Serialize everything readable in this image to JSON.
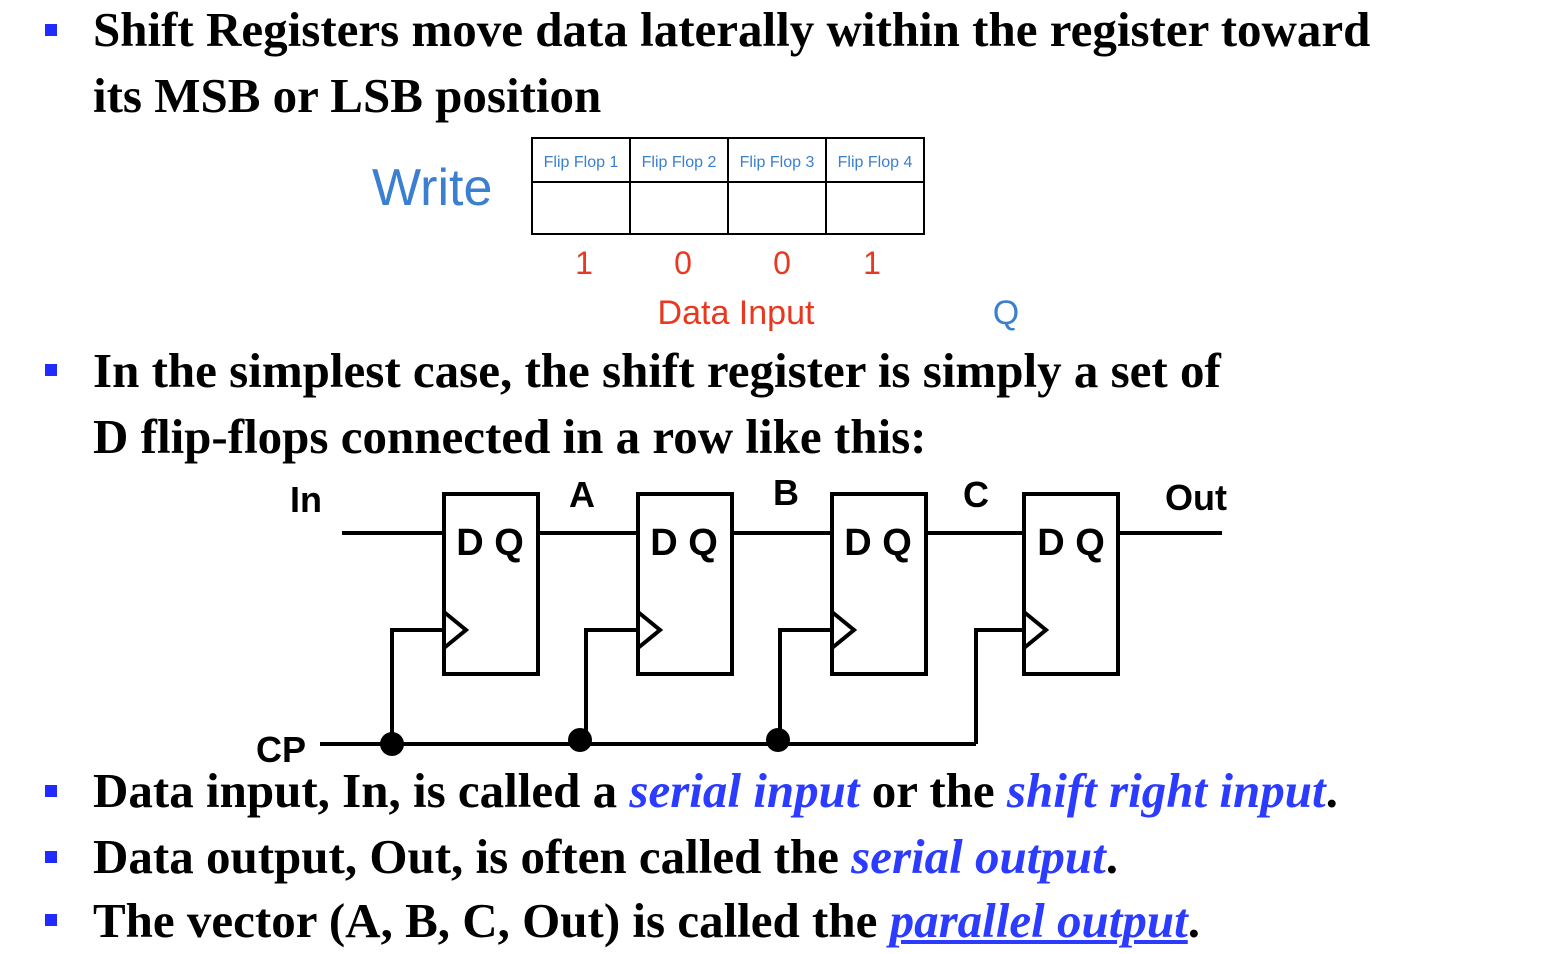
{
  "bullets": {
    "b1_line1": "Shift Registers move data laterally within the register toward",
    "b1_line2": "its MSB or LSB position",
    "b2_line1": "In the simplest case, the shift register is simply a set of",
    "b2_line2": "D flip-flops connected in a row like this:",
    "b3_pre": "Data input, In, is called a ",
    "b3_em1": "serial input",
    "b3_mid": " or the ",
    "b3_em2": "shift right input",
    "b3_post": ".",
    "b4_pre": "Data output, Out, is often called the ",
    "b4_em": "serial output",
    "b4_post": ".",
    "b5_pre": "The vector (A, B, C, Out) is called the ",
    "b5_em": "parallel output",
    "b5_post": "."
  },
  "write_diagram": {
    "write_label": "Write",
    "flipflops": [
      "Flip Flop 1",
      "Flip Flop 2",
      "Flip Flop 3",
      "Flip Flop 4"
    ],
    "data_bits": [
      "1",
      "0",
      "0",
      "1"
    ],
    "data_input_label": "Data Input",
    "q_label": "Q"
  },
  "circuit": {
    "in_label": "In",
    "cp_label": "CP",
    "out_label": "Out",
    "node_labels": [
      "A",
      "B",
      "C"
    ],
    "ff_label": "D Q"
  },
  "colors": {
    "bullet": "#1f2bff",
    "emphasis": "#2b3bff",
    "write_blue": "#3a7fd0",
    "data_red": "#e8381f"
  }
}
